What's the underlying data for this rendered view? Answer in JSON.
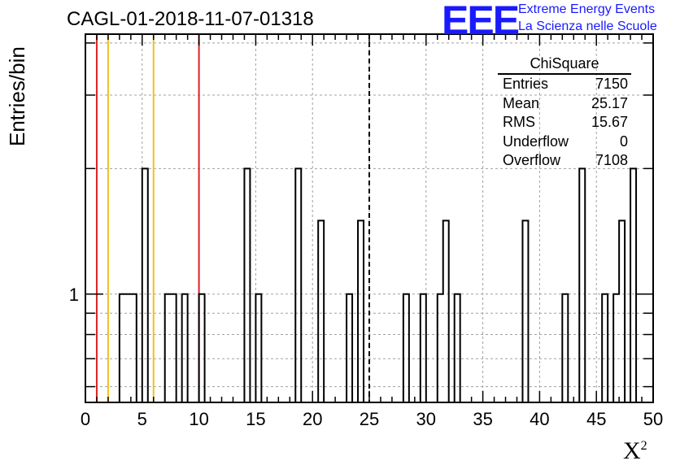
{
  "title": "CAGL-01-2018-11-07-01318",
  "logo": {
    "mark": "EEE",
    "line1": "Extreme Energy Events",
    "line2": "La Scienza nelle Scuole"
  },
  "colors": {
    "red": "#dd2222",
    "yellow": "#f0c020",
    "logo": "#1a1aff"
  },
  "stats": {
    "name": "ChiSquare",
    "rows": [
      {
        "label": "Entries",
        "value": "7150"
      },
      {
        "label": "Mean",
        "value": "25.17"
      },
      {
        "label": "RMS",
        "value": "15.67"
      },
      {
        "label": "Underflow",
        "value": "0"
      },
      {
        "label": "Overflow",
        "value": "7108"
      }
    ]
  },
  "chart_data": {
    "type": "bar",
    "subtype": "histogram",
    "xlabel": "X",
    "xlabel_sup": "2",
    "ylabel": "Entries/bin",
    "xlim": [
      0,
      50
    ],
    "ylog": true,
    "ylim": [
      0.55,
      4.2
    ],
    "bin_width": 0.5,
    "grid": true,
    "x_ticks": [
      "0",
      "5",
      "10",
      "15",
      "20",
      "25",
      "30",
      "35",
      "40",
      "45",
      "50"
    ],
    "y_ticks": [
      "1"
    ],
    "bins": [
      {
        "x": 3.0,
        "y": 1
      },
      {
        "x": 3.5,
        "y": 1
      },
      {
        "x": 4.0,
        "y": 1
      },
      {
        "x": 5.0,
        "y": 2
      },
      {
        "x": 7.0,
        "y": 1
      },
      {
        "x": 7.5,
        "y": 1
      },
      {
        "x": 8.5,
        "y": 1
      },
      {
        "x": 10.0,
        "y": 1
      },
      {
        "x": 14.0,
        "y": 2
      },
      {
        "x": 15.0,
        "y": 1
      },
      {
        "x": 18.5,
        "y": 2
      },
      {
        "x": 20.5,
        "y": 1.5
      },
      {
        "x": 23.0,
        "y": 1
      },
      {
        "x": 24.0,
        "y": 1.5
      },
      {
        "x": 28.0,
        "y": 1
      },
      {
        "x": 29.5,
        "y": 1
      },
      {
        "x": 31.0,
        "y": 1
      },
      {
        "x": 31.5,
        "y": 1.5
      },
      {
        "x": 32.5,
        "y": 1
      },
      {
        "x": 38.5,
        "y": 1.5
      },
      {
        "x": 42.0,
        "y": 1
      },
      {
        "x": 43.5,
        "y": 2
      },
      {
        "x": 45.5,
        "y": 1
      },
      {
        "x": 46.5,
        "y": 1
      },
      {
        "x": 47.0,
        "y": 1.5
      },
      {
        "x": 48.0,
        "y": 2
      }
    ],
    "vlines": [
      {
        "x": 1,
        "color": "red"
      },
      {
        "x": 2,
        "color": "yellow"
      },
      {
        "x": 6,
        "color": "yellow"
      },
      {
        "x": 10,
        "color": "red"
      },
      {
        "x": 25,
        "color": "black",
        "style": "dashed"
      }
    ]
  }
}
